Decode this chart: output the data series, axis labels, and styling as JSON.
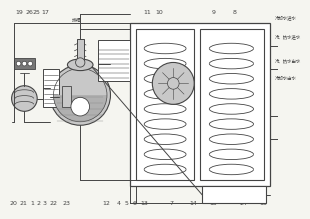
{
  "bg_color": "#f5f5f0",
  "line_color": "#444444",
  "fill_gray": "#c8c8c8",
  "fill_white": "#ffffff",
  "fill_dark": "#888888",
  "labels_top_left": [
    [
      "19",
      8
    ],
    [
      "26",
      16
    ],
    [
      "25",
      22
    ],
    [
      "17",
      30
    ]
  ],
  "labels_top_mid": [
    [
      "11",
      118
    ],
    [
      "10",
      128
    ],
    [
      "9",
      175
    ],
    [
      "8",
      193
    ]
  ],
  "labels_bot": [
    [
      "20",
      3
    ],
    [
      "21",
      11
    ],
    [
      "1",
      19
    ],
    [
      "2",
      24
    ],
    [
      "3",
      29
    ],
    [
      "22",
      37
    ],
    [
      "23",
      48
    ],
    [
      "12",
      82
    ],
    [
      "4",
      93
    ],
    [
      "5",
      100
    ],
    [
      "6",
      107
    ],
    [
      "13",
      115
    ],
    [
      "7",
      138
    ],
    [
      "14",
      157
    ],
    [
      "15",
      174
    ],
    [
      "24",
      200
    ],
    [
      "16",
      217
    ]
  ],
  "right_labels": [
    [
      "冷却水出水",
      112
    ],
    [
      "冷、热水出水",
      128
    ],
    [
      "冷、热水进水",
      148
    ],
    [
      "冷却水进水",
      165
    ]
  ],
  "exhaust_label": [
    "排烟",
    57,
    14
  ]
}
